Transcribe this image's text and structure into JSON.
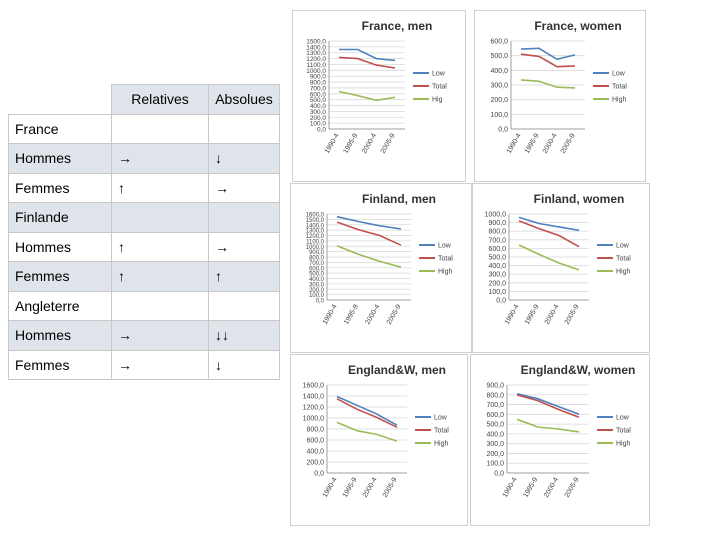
{
  "table": {
    "headers": [
      "",
      "Relatives",
      "Absolues"
    ],
    "rows": [
      {
        "label": "France",
        "rel": "",
        "abs": ""
      },
      {
        "label": "Hommes",
        "rel": "→",
        "abs": "↓"
      },
      {
        "label": "Femmes",
        "rel": "↑",
        "abs": "→"
      },
      {
        "label": "Finlande",
        "rel": "",
        "abs": ""
      },
      {
        "label": "Hommes",
        "rel": "↑",
        "abs": "→"
      },
      {
        "label": "Femmes",
        "rel": "↑",
        "abs": "↑"
      },
      {
        "label": "Angleterre",
        "rel": "",
        "abs": ""
      },
      {
        "label": "Hommes",
        "rel": "→",
        "abs": "↓↓"
      },
      {
        "label": "Femmes",
        "rel": "→",
        "abs": "↓"
      }
    ]
  },
  "colors": {
    "Low": "#4f81bd",
    "Total": "#c0504d",
    "High": "#9bbb59",
    "grid": "#d9d9d9",
    "axis": "#888888"
  },
  "chart_data": [
    {
      "type": "line",
      "title": "France, men",
      "categories": [
        "1990-4",
        "1995-9",
        "2000-4",
        "2005-9"
      ],
      "yticks": [
        "1500,0",
        "1400,0",
        "1300,0",
        "1200,0",
        "1100,0",
        "1000,0",
        "900,0",
        "800,0",
        "700,0",
        "600,0",
        "500,0",
        "400,0",
        "300,0",
        "200,0",
        "100,0",
        "0,0"
      ],
      "ylim": [
        0,
        1500
      ],
      "series": [
        {
          "name": "Low",
          "values": [
            1355,
            1355,
            1200,
            1170
          ]
        },
        {
          "name": "Total",
          "values": [
            1220,
            1200,
            1090,
            1040
          ]
        },
        {
          "name": "High",
          "values": [
            640,
            570,
            490,
            540
          ]
        }
      ],
      "legend": [
        "Low",
        "Total",
        "Hig"
      ]
    },
    {
      "type": "line",
      "title": "France, women",
      "categories": [
        "1990-4",
        "1995-9",
        "2000-4",
        "2005-9"
      ],
      "yticks": [
        "600,0",
        "500,0",
        "400,0",
        "300,0",
        "200,0",
        "100,0",
        "0,0"
      ],
      "ylim": [
        0,
        600
      ],
      "series": [
        {
          "name": "Low",
          "values": [
            545,
            550,
            475,
            505
          ]
        },
        {
          "name": "Total",
          "values": [
            510,
            495,
            425,
            430
          ]
        },
        {
          "name": "High",
          "values": [
            335,
            325,
            285,
            280
          ]
        }
      ],
      "legend": [
        "Low",
        "Total",
        "High"
      ]
    },
    {
      "type": "line",
      "title": "Finland, men",
      "categories": [
        "1990-4",
        "1995-9",
        "2000-4",
        "2005-9"
      ],
      "yticks": [
        "1600,0",
        "1500,0",
        "1400,0",
        "1300,0",
        "1200,0",
        "1100,0",
        "1000,0",
        "900,0",
        "800,0",
        "700,0",
        "600,0",
        "500,0",
        "400,0",
        "300,0",
        "200,0",
        "100,0",
        "0,0"
      ],
      "ylim": [
        0,
        1600
      ],
      "series": [
        {
          "name": "Low",
          "values": [
            1550,
            1460,
            1380,
            1320
          ]
        },
        {
          "name": "Total",
          "values": [
            1450,
            1310,
            1200,
            1020
          ]
        },
        {
          "name": "High",
          "values": [
            1010,
            850,
            720,
            610
          ]
        }
      ],
      "legend": [
        "Low",
        "Total",
        "High"
      ]
    },
    {
      "type": "line",
      "title": "Finland, women",
      "categories": [
        "1990-4",
        "1995-9",
        "2000-4",
        "2005-9"
      ],
      "yticks": [
        "1000,0",
        "900,0",
        "800,0",
        "700,0",
        "600,0",
        "500,0",
        "400,0",
        "300,0",
        "200,0",
        "100,0",
        "0,0"
      ],
      "ylim": [
        0,
        1000
      ],
      "series": [
        {
          "name": "Low",
          "values": [
            960,
            890,
            850,
            810
          ]
        },
        {
          "name": "Total",
          "values": [
            920,
            830,
            750,
            620
          ]
        },
        {
          "name": "High",
          "values": [
            640,
            530,
            430,
            350
          ]
        }
      ],
      "legend": [
        "Low",
        "Total",
        "High"
      ]
    },
    {
      "type": "line",
      "title": "England&W, men",
      "categories": [
        "1990-4",
        "1995-9",
        "2000-4",
        "2005-9"
      ],
      "yticks": [
        "1600,0",
        "1400,0",
        "1200,0",
        "1000,0",
        "800,0",
        "600,0",
        "400,0",
        "200,0",
        "0,0"
      ],
      "ylim": [
        0,
        1600
      ],
      "series": [
        {
          "name": "Low",
          "values": [
            1390,
            1230,
            1070,
            870
          ]
        },
        {
          "name": "Total",
          "values": [
            1350,
            1160,
            1010,
            830
          ]
        },
        {
          "name": "High",
          "values": [
            920,
            770,
            700,
            580
          ]
        }
      ],
      "legend": [
        "Low",
        "Total",
        "High"
      ]
    },
    {
      "type": "line",
      "title": "England&W, women",
      "categories": [
        "1990-4",
        "1995-9",
        "2000-4",
        "2005-9"
      ],
      "yticks": [
        "900,0",
        "800,0",
        "700,0",
        "600,0",
        "500,0",
        "400,0",
        "300,0",
        "200,0",
        "100,0",
        "0,0"
      ],
      "ylim": [
        0,
        900
      ],
      "series": [
        {
          "name": "Low",
          "values": [
            810,
            760,
            680,
            600
          ]
        },
        {
          "name": "Total",
          "values": [
            800,
            740,
            650,
            570
          ]
        },
        {
          "name": "High",
          "values": [
            550,
            470,
            450,
            420
          ]
        }
      ],
      "legend": [
        "Low",
        "Total",
        "High"
      ]
    }
  ]
}
